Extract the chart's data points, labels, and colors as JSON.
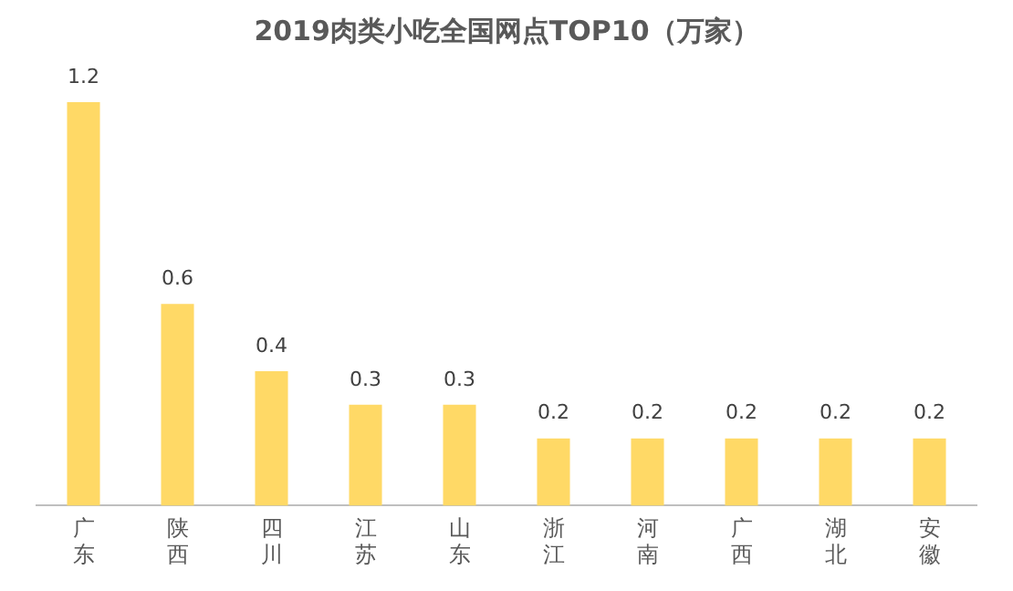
{
  "chart_data": {
    "type": "bar",
    "title": "2019肉类小吃全国网点TOP10（万家）",
    "categories": [
      "广东",
      "陕西",
      "四川",
      "江苏",
      "山东",
      "浙江",
      "河南",
      "广西",
      "湖北",
      "安徽"
    ],
    "values": [
      1.2,
      0.6,
      0.4,
      0.3,
      0.3,
      0.2,
      0.2,
      0.2,
      0.2,
      0.2
    ],
    "color": "#ffd966",
    "data_labels": true
  }
}
